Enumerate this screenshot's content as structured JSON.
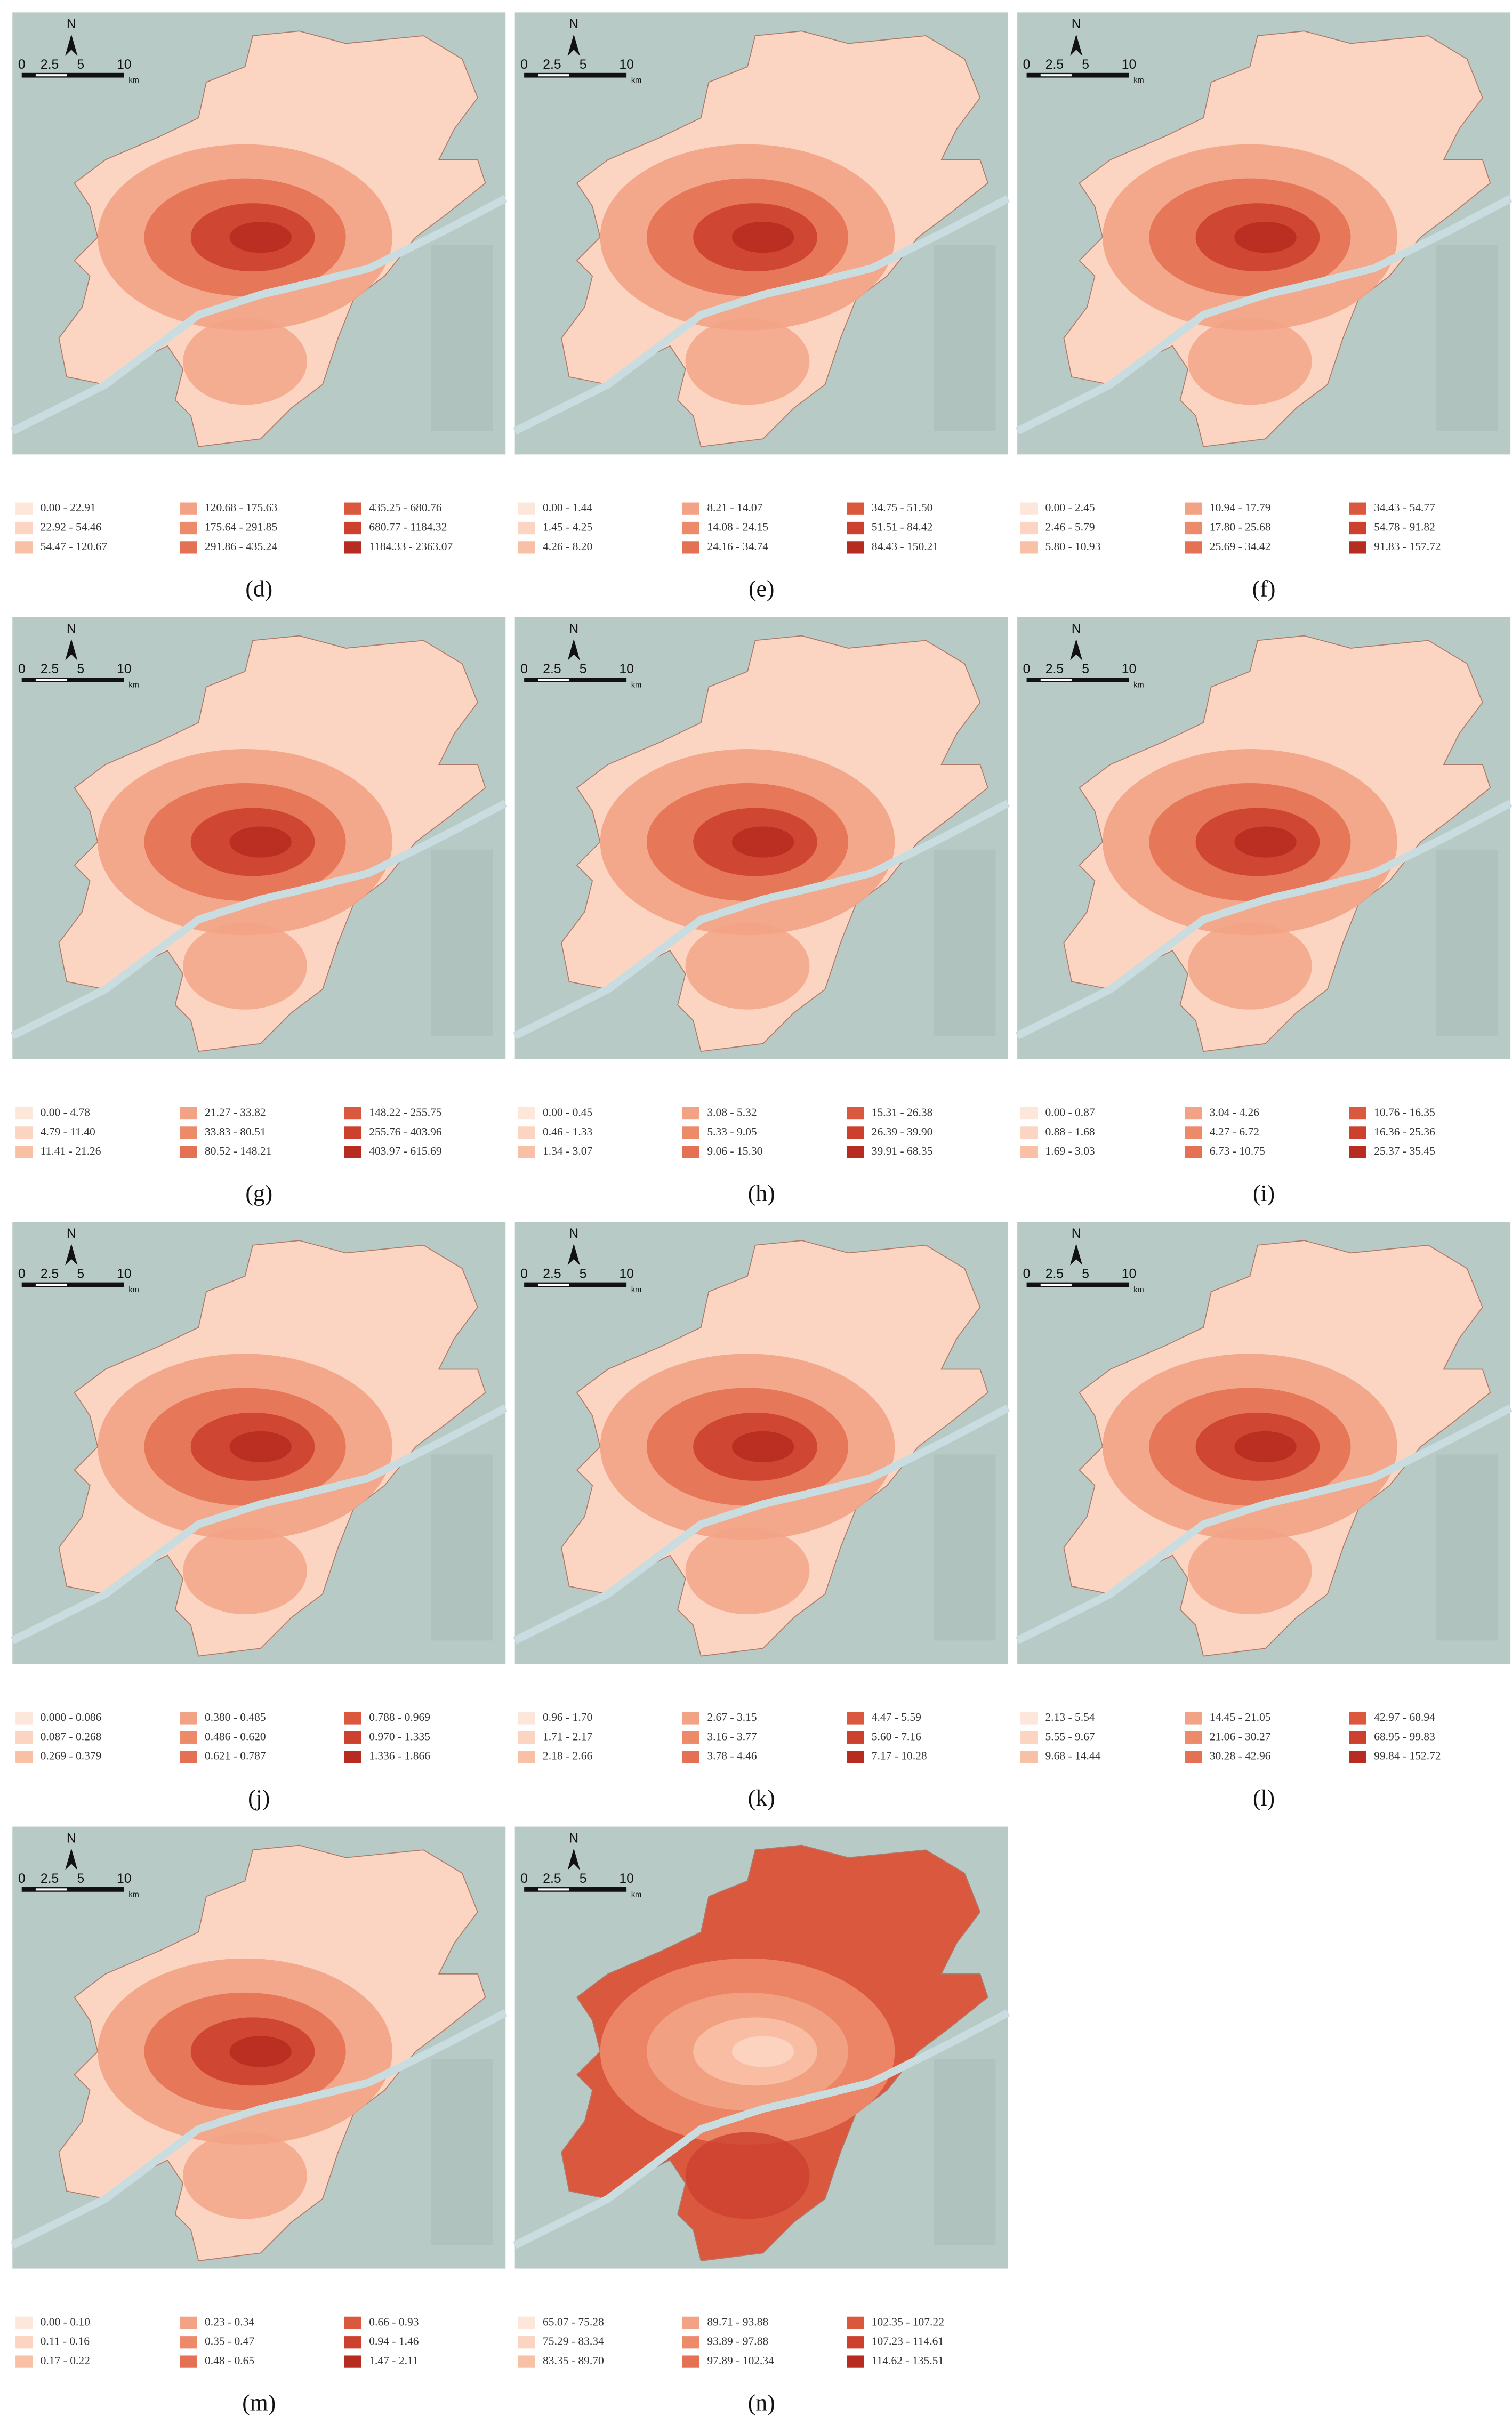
{
  "scale_bar": {
    "north": "N",
    "ticks": [
      "0",
      "2.5",
      "5",
      "10"
    ],
    "unit": "km"
  },
  "class_colors": [
    "#fde7da",
    "#fbd5c1",
    "#f8c0a5",
    "#f3a385",
    "#ed8a6a",
    "#e47153",
    "#da583e",
    "#cc412e",
    "#b72c20"
  ],
  "panels": [
    {
      "label": "(d)",
      "legend": [
        "0.00 - 22.91",
        "22.92 - 54.46",
        "54.47 - 120.67",
        "120.68 - 175.63",
        "175.64 - 291.85",
        "291.86 - 435.24",
        "435.25 - 680.76",
        "680.77 - 1184.32",
        "1184.33 - 2363.07"
      ]
    },
    {
      "label": "(e)",
      "legend": [
        "0.00 - 1.44",
        "1.45 - 4.25",
        "4.26 - 8.20",
        "8.21 - 14.07",
        "14.08 - 24.15",
        "24.16 - 34.74",
        "34.75 - 51.50",
        "51.51 - 84.42",
        "84.43 - 150.21"
      ]
    },
    {
      "label": "(f)",
      "legend": [
        "0.00 - 2.45",
        "2.46 - 5.79",
        "5.80 - 10.93",
        "10.94 - 17.79",
        "17.80 - 25.68",
        "25.69 - 34.42",
        "34.43 - 54.77",
        "54.78 - 91.82",
        "91.83 - 157.72"
      ]
    },
    {
      "label": "(g)",
      "legend": [
        "0.00 - 4.78",
        "4.79 - 11.40",
        "11.41 - 21.26",
        "21.27 - 33.82",
        "33.83 - 80.51",
        "80.52 - 148.21",
        "148.22 - 255.75",
        "255.76 - 403.96",
        "403.97 - 615.69"
      ]
    },
    {
      "label": "(h)",
      "legend": [
        "0.00 - 0.45",
        "0.46 - 1.33",
        "1.34 - 3.07",
        "3.08 - 5.32",
        "5.33 - 9.05",
        "9.06 - 15.30",
        "15.31 - 26.38",
        "26.39 - 39.90",
        "39.91 - 68.35"
      ]
    },
    {
      "label": "(i)",
      "legend": [
        "0.00 - 0.87",
        "0.88 - 1.68",
        "1.69 - 3.03",
        "3.04 - 4.26",
        "4.27 - 6.72",
        "6.73 - 10.75",
        "10.76 - 16.35",
        "16.36 - 25.36",
        "25.37 - 35.45"
      ]
    },
    {
      "label": "(j)",
      "legend": [
        "0.000 - 0.086",
        "0.087 - 0.268",
        "0.269 - 0.379",
        "0.380 - 0.485",
        "0.486 - 0.620",
        "0.621 - 0.787",
        "0.788 - 0.969",
        "0.970 - 1.335",
        "1.336 - 1.866"
      ]
    },
    {
      "label": "(k)",
      "legend": [
        "0.96 - 1.70",
        "1.71 - 2.17",
        "2.18 - 2.66",
        "2.67 - 3.15",
        "3.16 - 3.77",
        "3.78 - 4.46",
        "4.47 - 5.59",
        "5.60 - 7.16",
        "7.17 - 10.28"
      ]
    },
    {
      "label": "(l)",
      "legend": [
        "2.13 - 5.54",
        "5.55 - 9.67",
        "9.68 - 14.44",
        "14.45 - 21.05",
        "21.06 - 30.27",
        "30.28 - 42.96",
        "42.97 - 68.94",
        "68.95 - 99.83",
        "99.84 - 152.72"
      ]
    },
    {
      "label": "(m)",
      "legend": [
        "0.00 - 0.10",
        "0.11 - 0.16",
        "0.17 - 0.22",
        "0.23 - 0.34",
        "0.35 - 0.47",
        "0.48 - 0.65",
        "0.66 - 0.93",
        "0.94 - 1.46",
        "1.47 - 2.11"
      ]
    },
    {
      "label": "(n)",
      "legend": [
        "65.07 - 75.28",
        "75.29 - 83.34",
        "83.35 - 89.70",
        "89.71 - 93.88",
        "93.89 - 97.88",
        "97.89 - 102.34",
        "102.35 - 107.22",
        "107.23 - 114.61",
        "114.62 - 135.51"
      ]
    }
  ]
}
